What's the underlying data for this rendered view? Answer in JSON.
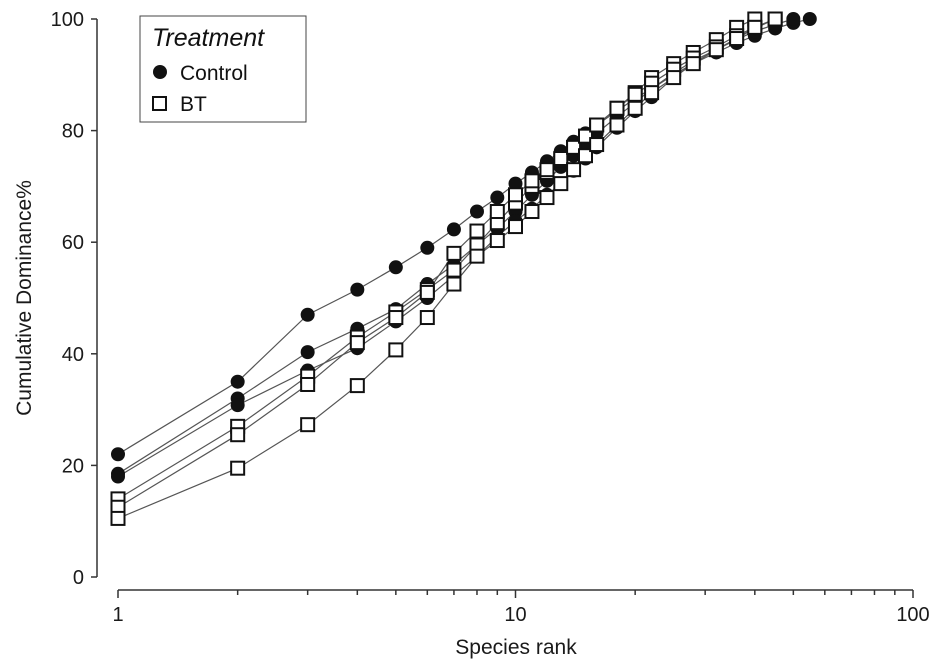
{
  "chart_data": {
    "type": "line",
    "xlabel": "Species rank",
    "ylabel": "Cumulative Dominance%",
    "x_scale": "log",
    "xlim": [
      1,
      100
    ],
    "ylim": [
      0,
      100
    ],
    "x_ticks": [
      "1",
      "10",
      "100"
    ],
    "y_ticks": [
      "0",
      "20",
      "40",
      "60",
      "80",
      "100"
    ],
    "grid": false,
    "legend": {
      "title": "Treatment",
      "placement": "top-left",
      "entries": [
        "Control",
        "BT"
      ]
    },
    "colors": {
      "line": "#555555",
      "marker": "#111111",
      "bt_fill": "#ffffff"
    },
    "series": [
      {
        "group": "Control",
        "marker": "circle",
        "x": [
          1,
          2,
          3,
          4,
          5,
          6,
          7,
          8,
          9,
          10,
          11,
          12,
          13,
          14,
          15,
          16,
          18,
          20,
          22,
          25,
          28,
          32,
          36,
          40,
          45,
          50,
          55
        ],
        "y": [
          22,
          35,
          47,
          51.5,
          55.5,
          59,
          62.3,
          65.5,
          68,
          70.5,
          72.5,
          74.5,
          76.3,
          78,
          79.5,
          81,
          83.5,
          85.8,
          87.5,
          90,
          92,
          94,
          95.7,
          97,
          98.3,
          99.3,
          100
        ]
      },
      {
        "group": "Control",
        "marker": "circle",
        "x": [
          1,
          2,
          3,
          4,
          5,
          6,
          7,
          8,
          9,
          10,
          11,
          12,
          13,
          14,
          15,
          16,
          18,
          20,
          22,
          25,
          28,
          32,
          36,
          40,
          45,
          50
        ],
        "y": [
          18.5,
          32,
          40.3,
          44.5,
          48,
          52.5,
          56,
          59.5,
          62.5,
          65.5,
          68.5,
          71,
          73.5,
          75.5,
          77.5,
          79.5,
          82.5,
          85,
          87.5,
          90.3,
          92.5,
          94.5,
          96.3,
          97.8,
          99,
          100
        ]
      },
      {
        "group": "Control",
        "marker": "circle",
        "x": [
          1,
          2,
          3,
          4,
          5,
          6,
          7,
          8,
          9,
          10,
          11,
          12,
          13,
          14,
          15,
          16,
          18,
          20,
          22,
          25,
          28,
          32,
          36,
          40,
          45
        ],
        "y": [
          18,
          30.8,
          37,
          41,
          45.8,
          50,
          54,
          57.5,
          61,
          63.8,
          66,
          68.5,
          70.5,
          72.8,
          75,
          77,
          80.5,
          83.5,
          86,
          89.5,
          92,
          94.5,
          96.5,
          98.3,
          100
        ]
      },
      {
        "group": "BT",
        "marker": "square",
        "x": [
          1,
          2,
          3,
          4,
          5,
          6,
          7,
          8,
          9,
          10,
          11,
          12,
          13,
          14,
          15,
          16,
          18,
          20,
          22,
          25,
          28,
          32,
          36,
          40
        ],
        "y": [
          14,
          27,
          36,
          43,
          47.5,
          51.5,
          55,
          59.5,
          63.5,
          67,
          70,
          72.5,
          74.8,
          77,
          79,
          81,
          84,
          86.8,
          89.5,
          92,
          94,
          96.3,
          98.5,
          100
        ]
      },
      {
        "group": "BT",
        "marker": "square",
        "x": [
          1,
          2,
          3,
          4,
          5,
          6,
          7,
          8,
          9,
          10,
          11,
          12,
          13,
          14,
          15,
          16,
          18,
          20,
          22,
          25,
          28,
          32,
          36,
          40,
          45
        ],
        "y": [
          12.5,
          25.5,
          34.5,
          42,
          46.5,
          51,
          58,
          62,
          65.5,
          68.5,
          71,
          73,
          75,
          77,
          79,
          81,
          84,
          86.5,
          88.5,
          91,
          93,
          95,
          97,
          98.5,
          100
        ]
      },
      {
        "group": "BT",
        "marker": "square",
        "x": [
          1,
          2,
          3,
          4,
          5,
          6,
          7,
          8,
          9,
          10,
          11,
          12,
          13,
          14,
          15,
          16,
          18,
          20,
          22,
          25,
          28,
          32,
          36,
          40,
          45
        ],
        "y": [
          10.5,
          19.5,
          27.3,
          34.3,
          40.7,
          46.5,
          52.5,
          57.5,
          60.3,
          62.8,
          65.5,
          68,
          70.5,
          73,
          75.5,
          77.5,
          81,
          84,
          86.8,
          89.5,
          92,
          94.5,
          96.5,
          98.5,
          100
        ]
      }
    ]
  }
}
